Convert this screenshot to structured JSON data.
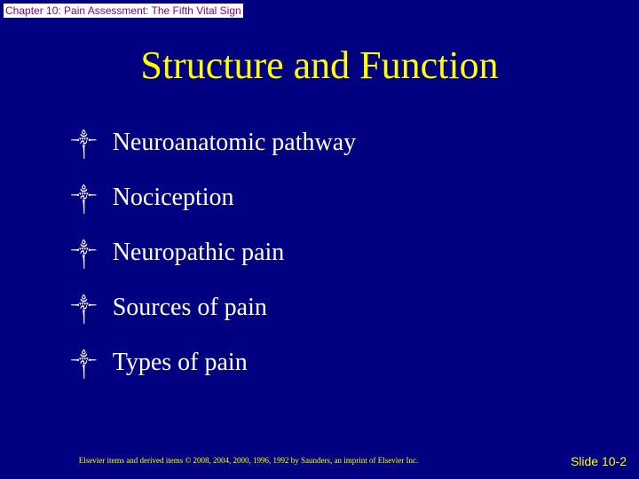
{
  "colors": {
    "background": "#000080",
    "header_text": "#800080",
    "header_bg": "#ffffff",
    "title_text": "#ffff00",
    "bullet_text": "#ffffff",
    "footer_text": "#ffff00",
    "slidenum_text": "#ffff00"
  },
  "header": "Chapter 10: Pain Assessment: The Fifth Vital Sign",
  "title": "Structure and Function",
  "bullets": [
    "Neuroanatomic pathway",
    "Nociception",
    "Neuropathic pain",
    "Sources of pain",
    "Types of pain"
  ],
  "bullet_glyph": "༒",
  "footer": "Elsevier items and derived items © 2008, 2004, 2000, 1996, 1992 by Saunders, an imprint of Elsevier Inc.",
  "slide_number": "Slide 10-2",
  "typography": {
    "header_fontsize": 12,
    "title_fontsize": 44,
    "bullet_fontsize": 28,
    "footer_fontsize": 9,
    "slidenum_fontsize": 14
  }
}
